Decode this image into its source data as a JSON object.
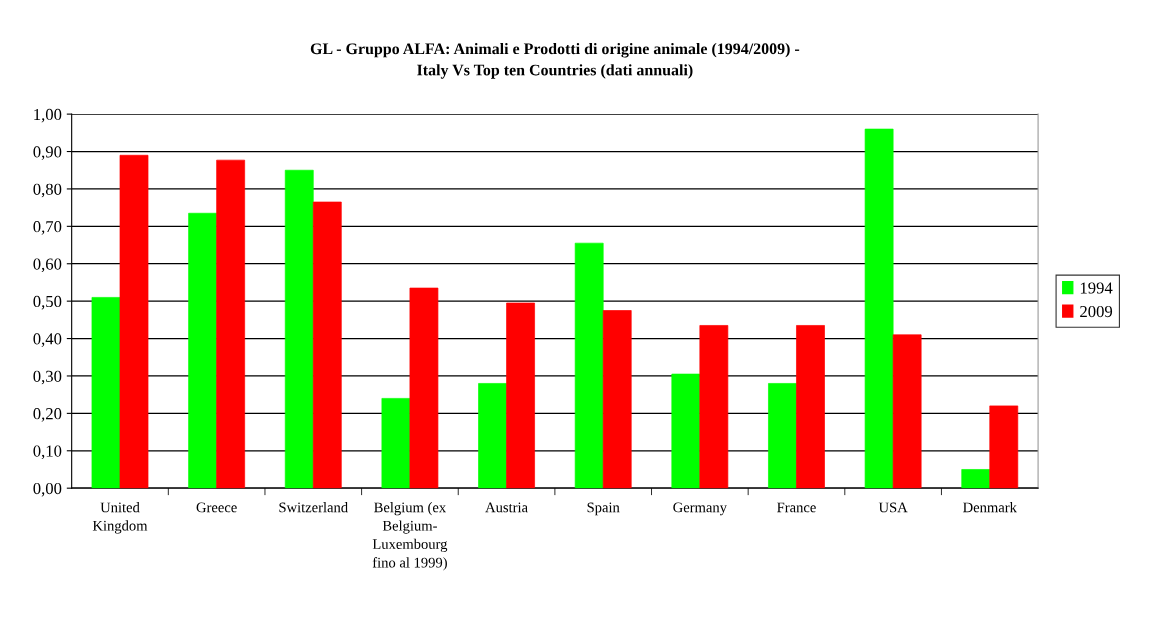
{
  "chart_data": {
    "type": "bar",
    "title": "GL - Gruppo ALFA: Animali e Prodotti di origine animale (1994/2009) -\nItaly Vs Top ten Countries (dati annuali)",
    "categories": [
      "United\nKingdom",
      "Greece",
      "Switzerland",
      "Belgium (ex\nBelgium-\nLuxembourg\nfino al 1999)",
      "Austria",
      "Spain",
      "Germany",
      "France",
      "USA",
      "Denmark"
    ],
    "series": [
      {
        "name": "1994",
        "color": "#00ff00",
        "values": [
          0.51,
          0.735,
          0.85,
          0.24,
          0.28,
          0.655,
          0.305,
          0.28,
          0.96,
          0.05
        ]
      },
      {
        "name": "2009",
        "color": "#ff0000",
        "values": [
          0.89,
          0.877,
          0.765,
          0.535,
          0.495,
          0.475,
          0.435,
          0.435,
          0.41,
          0.22
        ]
      }
    ],
    "ylim": [
      0,
      1
    ],
    "yticks": [
      {
        "value": 0,
        "label": "0,00"
      },
      {
        "value": 0.1,
        "label": "0,10"
      },
      {
        "value": 0.2,
        "label": "0,20"
      },
      {
        "value": 0.3,
        "label": "0,30"
      },
      {
        "value": 0.4,
        "label": "0,40"
      },
      {
        "value": 0.5,
        "label": "0,50"
      },
      {
        "value": 0.6,
        "label": "0,60"
      },
      {
        "value": 0.7,
        "label": "0,70"
      },
      {
        "value": 0.8,
        "label": "0,80"
      },
      {
        "value": 0.9,
        "label": "0,90"
      },
      {
        "value": 1,
        "label": "1,00"
      }
    ],
    "grid": "y",
    "legend": "right"
  }
}
